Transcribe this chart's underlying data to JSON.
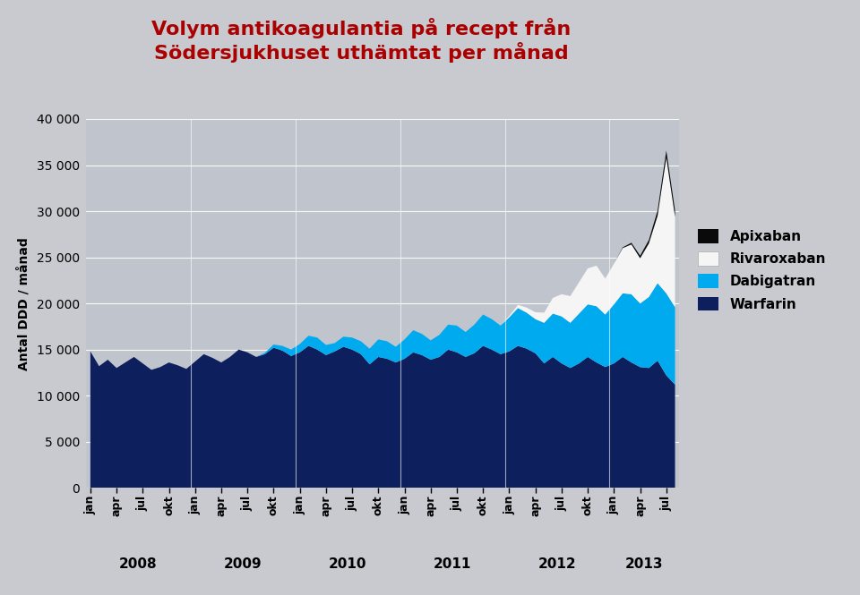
{
  "title_line1": "Volym antikoagulantia på recept från",
  "title_line2": "Södersjukhuset uthämtat per månad",
  "title_color": "#aa0000",
  "ylabel": "Antal DDD / månad",
  "ylim": [
    0,
    40000
  ],
  "yticks": [
    0,
    5000,
    10000,
    15000,
    20000,
    25000,
    30000,
    35000,
    40000
  ],
  "background_color": "#c8cad0",
  "plot_bg_color": "#c0c4cc",
  "colors": {
    "Warfarin": "#0d1f5c",
    "Dabigatran": "#00aaee",
    "Rivaroxaban": "#f5f5f5",
    "Apixaban": "#0a0a0a"
  },
  "tick_labels": [
    "jan",
    "apr",
    "jul",
    "okt",
    "jan",
    "apr",
    "jul",
    "okt",
    "jan",
    "apr",
    "jul",
    "okt",
    "jan",
    "apr",
    "jul",
    "okt",
    "jan",
    "apr",
    "jul",
    "okt",
    "jan",
    "apr",
    "jul"
  ],
  "year_labels": [
    "2008",
    "2009",
    "2010",
    "2011",
    "2012",
    "2013"
  ],
  "warfarin": [
    14800,
    13200,
    13900,
    13000,
    13600,
    14200,
    13500,
    12800,
    13100,
    13600,
    13300,
    12900,
    13700,
    14500,
    14100,
    13600,
    14200,
    15000,
    14700,
    14200,
    14500,
    15200,
    14900,
    14300,
    14700,
    15400,
    15000,
    14400,
    14800,
    15300,
    15000,
    14500,
    13400,
    14200,
    14000,
    13600,
    14000,
    14700,
    14400,
    13900,
    14200,
    15000,
    14700,
    14200,
    14600,
    15400,
    15000,
    14500,
    14800,
    15400,
    15100,
    14600,
    13500,
    14200,
    13500,
    13000,
    13500,
    14200,
    13600,
    13100,
    13500,
    14200,
    13600,
    13100,
    13000,
    13800,
    12200,
    11200
  ],
  "dabigatran": [
    0,
    0,
    0,
    0,
    0,
    0,
    0,
    0,
    0,
    0,
    0,
    0,
    0,
    0,
    0,
    0,
    0,
    0,
    0,
    0,
    150,
    350,
    500,
    700,
    900,
    1100,
    1300,
    1100,
    900,
    1100,
    1300,
    1400,
    1700,
    1900,
    1900,
    1700,
    2100,
    2400,
    2300,
    2100,
    2400,
    2700,
    2900,
    2700,
    3100,
    3400,
    3300,
    3100,
    3700,
    4100,
    3900,
    3700,
    4400,
    4700,
    5100,
    4900,
    5400,
    5700,
    6100,
    5700,
    6400,
    6900,
    7400,
    6900,
    7700,
    8400,
    8900,
    8400
  ],
  "rivaroxaban": [
    0,
    0,
    0,
    0,
    0,
    0,
    0,
    0,
    0,
    0,
    0,
    0,
    0,
    0,
    0,
    0,
    0,
    0,
    0,
    0,
    0,
    0,
    0,
    0,
    0,
    0,
    0,
    0,
    0,
    0,
    0,
    0,
    0,
    0,
    0,
    0,
    0,
    0,
    0,
    0,
    0,
    0,
    0,
    0,
    0,
    0,
    0,
    0,
    150,
    350,
    550,
    750,
    1100,
    1700,
    2400,
    2900,
    3400,
    3900,
    4400,
    3900,
    4400,
    4900,
    5400,
    4900,
    5800,
    7300,
    14700,
    9800
  ],
  "apixaban": [
    0,
    0,
    0,
    0,
    0,
    0,
    0,
    0,
    0,
    0,
    0,
    0,
    0,
    0,
    0,
    0,
    0,
    0,
    0,
    0,
    0,
    0,
    0,
    0,
    0,
    0,
    0,
    0,
    0,
    0,
    0,
    0,
    0,
    0,
    0,
    0,
    0,
    0,
    0,
    0,
    0,
    0,
    0,
    0,
    0,
    0,
    0,
    0,
    0,
    0,
    0,
    0,
    0,
    0,
    0,
    0,
    0,
    0,
    0,
    0,
    0,
    80,
    180,
    280,
    380,
    580,
    780,
    680
  ]
}
